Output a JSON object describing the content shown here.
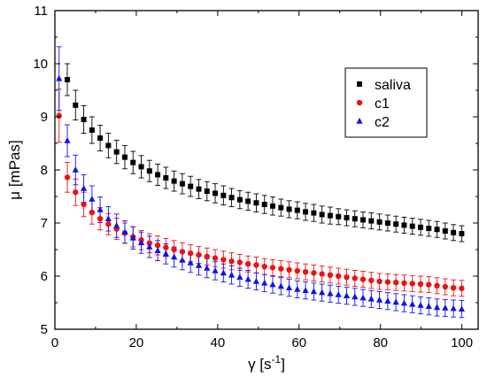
{
  "chart_data": {
    "type": "scatter",
    "xlabel": {
      "base": "γ [s",
      "sup": "-1",
      "tail": "]"
    },
    "ylabel": "μ [mPas]",
    "xlim": [
      0,
      104
    ],
    "ylim": [
      5,
      11
    ],
    "xticks": [
      0,
      20,
      40,
      60,
      80,
      100
    ],
    "yticks": [
      5,
      6,
      7,
      8,
      9,
      10,
      11
    ],
    "x_tick_labels": [
      "0",
      "20",
      "40",
      "60",
      "80",
      "100"
    ],
    "y_tick_labels": [
      "5",
      "6",
      "7",
      "8",
      "9",
      "10",
      "11"
    ],
    "grid": false,
    "legend_position": "top-right",
    "error_bars": true,
    "series": [
      {
        "name": "saliva",
        "color": "#000000",
        "marker": "square",
        "x": [
          3.05,
          5.07,
          7.09,
          9.11,
          11.12,
          13.14,
          15.16,
          17.18,
          19.2,
          21.22,
          23.24,
          25.26,
          27.27,
          29.29,
          31.31,
          33.33,
          35.35,
          37.37,
          39.39,
          41.41,
          43.42,
          45.44,
          47.46,
          49.48,
          51.5,
          53.52,
          55.54,
          57.56,
          59.57,
          61.59,
          63.61,
          65.63,
          67.65,
          69.67,
          71.69,
          73.71,
          75.72,
          77.74,
          79.76,
          81.78,
          83.8,
          85.82,
          87.84,
          89.86,
          91.87,
          93.89,
          95.91,
          97.93,
          99.95
        ],
        "y": [
          9.7,
          9.22,
          8.95,
          8.75,
          8.6,
          8.46,
          8.34,
          8.24,
          8.14,
          8.06,
          7.98,
          7.91,
          7.85,
          7.79,
          7.74,
          7.69,
          7.64,
          7.6,
          7.56,
          7.52,
          7.48,
          7.44,
          7.41,
          7.38,
          7.35,
          7.32,
          7.29,
          7.26,
          7.24,
          7.21,
          7.19,
          7.16,
          7.14,
          7.12,
          7.1,
          7.08,
          7.06,
          7.04,
          7.02,
          7.0,
          6.98,
          6.96,
          6.94,
          6.92,
          6.9,
          6.88,
          6.85,
          6.82,
          6.8
        ],
        "err": [
          0.3,
          0.28,
          0.26,
          0.25,
          0.24,
          0.23,
          0.22,
          0.22,
          0.21,
          0.21,
          0.2,
          0.2,
          0.2,
          0.19,
          0.19,
          0.19,
          0.18,
          0.18,
          0.18,
          0.18,
          0.17,
          0.17,
          0.17,
          0.17,
          0.17,
          0.17,
          0.16,
          0.16,
          0.16,
          0.16,
          0.16,
          0.16,
          0.16,
          0.15,
          0.15,
          0.15,
          0.15,
          0.15,
          0.15,
          0.15,
          0.15,
          0.15,
          0.15,
          0.15,
          0.15,
          0.15,
          0.15,
          0.15,
          0.15
        ]
      },
      {
        "name": "c1",
        "color": "#ee1111",
        "marker": "circle",
        "x": [
          1.03,
          3.05,
          5.07,
          7.09,
          9.11,
          11.12,
          13.14,
          15.16,
          17.18,
          19.2,
          21.22,
          23.24,
          25.26,
          27.27,
          29.29,
          31.31,
          33.33,
          35.35,
          37.37,
          39.39,
          41.41,
          43.42,
          45.44,
          47.46,
          49.48,
          51.5,
          53.52,
          55.54,
          57.56,
          59.57,
          61.59,
          63.61,
          65.63,
          67.65,
          69.67,
          71.69,
          73.71,
          75.72,
          77.74,
          79.76,
          81.78,
          83.8,
          85.82,
          87.84,
          89.86,
          91.87,
          93.89,
          95.91,
          97.93,
          99.95
        ],
        "y": [
          9.02,
          7.86,
          7.58,
          7.35,
          7.2,
          7.08,
          6.98,
          6.89,
          6.81,
          6.74,
          6.68,
          6.62,
          6.58,
          6.54,
          6.5,
          6.46,
          6.43,
          6.4,
          6.37,
          6.34,
          6.31,
          6.28,
          6.26,
          6.23,
          6.21,
          6.18,
          6.16,
          6.14,
          6.12,
          6.1,
          6.08,
          6.06,
          6.04,
          6.02,
          6.0,
          5.98,
          5.96,
          5.94,
          5.92,
          5.9,
          5.89,
          5.88,
          5.87,
          5.86,
          5.85,
          5.84,
          5.82,
          5.8,
          5.78,
          5.77
        ],
        "err": [
          0.5,
          0.28,
          0.25,
          0.23,
          0.22,
          0.21,
          0.2,
          0.2,
          0.19,
          0.19,
          0.18,
          0.18,
          0.18,
          0.17,
          0.17,
          0.17,
          0.16,
          0.16,
          0.16,
          0.16,
          0.16,
          0.16,
          0.15,
          0.15,
          0.15,
          0.15,
          0.15,
          0.15,
          0.15,
          0.15,
          0.15,
          0.15,
          0.15,
          0.15,
          0.15,
          0.15,
          0.15,
          0.15,
          0.15,
          0.15,
          0.15,
          0.15,
          0.15,
          0.15,
          0.15,
          0.15,
          0.15,
          0.15,
          0.15,
          0.15
        ]
      },
      {
        "name": "c2",
        "color": "#1111ee",
        "marker": "triangle",
        "x": [
          1.03,
          3.05,
          5.07,
          7.09,
          9.11,
          11.12,
          13.14,
          15.16,
          17.18,
          19.2,
          21.22,
          23.24,
          25.26,
          27.27,
          29.29,
          31.31,
          33.33,
          35.35,
          37.37,
          39.39,
          41.41,
          43.42,
          45.44,
          47.46,
          49.48,
          51.5,
          53.52,
          55.54,
          57.56,
          59.57,
          61.59,
          63.61,
          65.63,
          67.65,
          69.67,
          71.69,
          73.71,
          75.72,
          77.74,
          79.76,
          81.78,
          83.8,
          85.82,
          87.84,
          89.86,
          91.87,
          93.89,
          95.91,
          97.93,
          99.95
        ],
        "y": [
          9.72,
          8.55,
          8.0,
          7.65,
          7.45,
          7.25,
          7.08,
          6.95,
          6.83,
          6.72,
          6.63,
          6.55,
          6.48,
          6.42,
          6.36,
          6.3,
          6.25,
          6.2,
          6.15,
          6.1,
          6.06,
          6.02,
          5.98,
          5.94,
          5.9,
          5.87,
          5.84,
          5.81,
          5.78,
          5.75,
          5.73,
          5.71,
          5.69,
          5.67,
          5.65,
          5.63,
          5.61,
          5.59,
          5.57,
          5.55,
          5.53,
          5.51,
          5.49,
          5.47,
          5.45,
          5.43,
          5.41,
          5.4,
          5.39,
          5.38
        ],
        "err": [
          0.6,
          0.3,
          0.28,
          0.26,
          0.25,
          0.24,
          0.23,
          0.22,
          0.21,
          0.21,
          0.2,
          0.2,
          0.19,
          0.19,
          0.19,
          0.18,
          0.18,
          0.18,
          0.18,
          0.17,
          0.17,
          0.17,
          0.17,
          0.17,
          0.16,
          0.16,
          0.16,
          0.16,
          0.16,
          0.16,
          0.16,
          0.16,
          0.16,
          0.16,
          0.16,
          0.16,
          0.16,
          0.16,
          0.16,
          0.16,
          0.16,
          0.16,
          0.16,
          0.16,
          0.16,
          0.16,
          0.16,
          0.16,
          0.16,
          0.16
        ]
      }
    ]
  }
}
